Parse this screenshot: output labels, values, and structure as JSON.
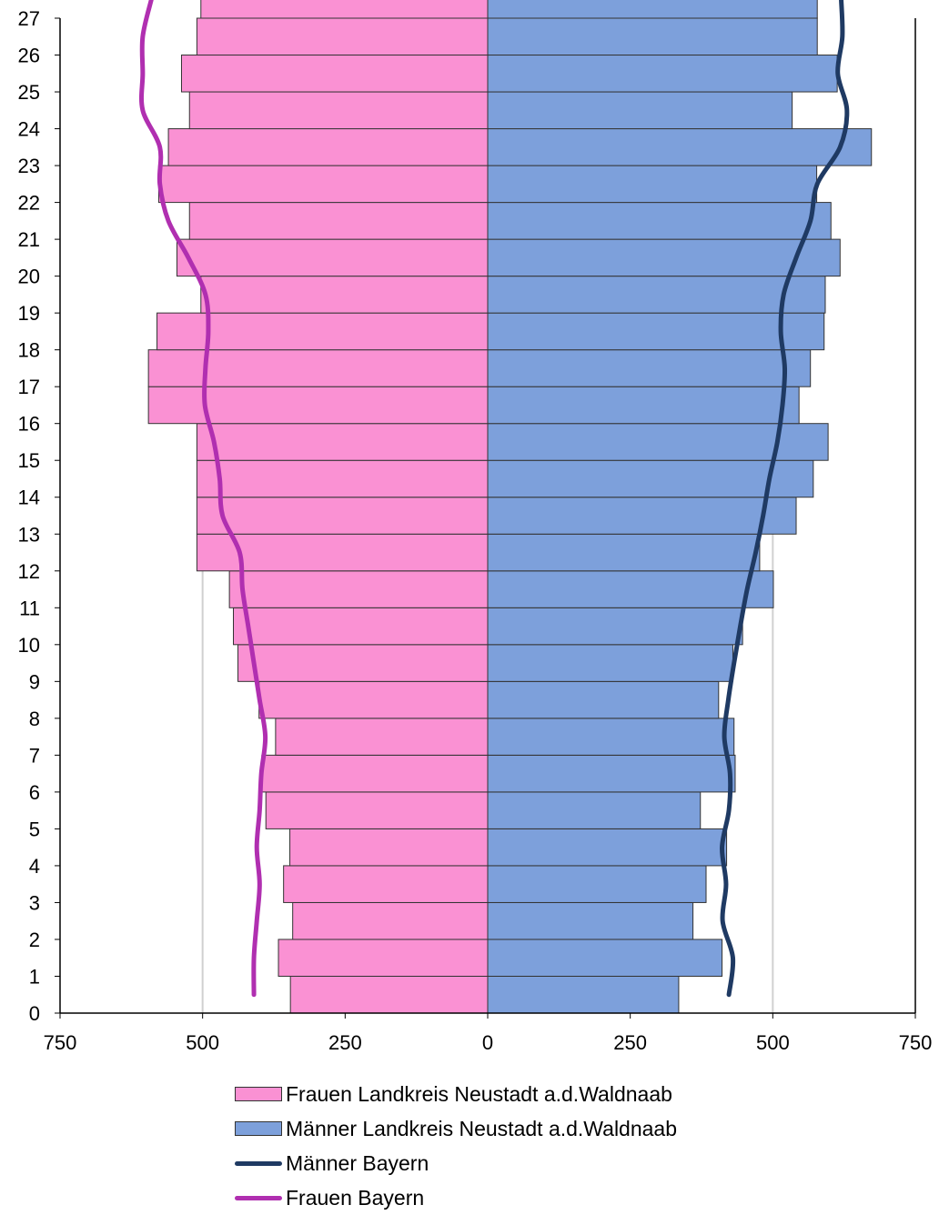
{
  "chart_data": {
    "type": "bar",
    "orientation": "horizontal",
    "subtype": "population-pyramid",
    "y_categories": [
      "0",
      "1",
      "2",
      "3",
      "4",
      "5",
      "6",
      "7",
      "8",
      "9",
      "10",
      "11",
      "12",
      "13",
      "14",
      "15",
      "16",
      "17",
      "18",
      "19",
      "20",
      "21",
      "22",
      "23",
      "24",
      "25",
      "26",
      "27"
    ],
    "y_ticks": [
      0,
      1,
      2,
      3,
      4,
      5,
      6,
      7,
      8,
      9,
      10,
      11,
      12,
      13,
      14,
      15,
      16,
      17,
      18,
      19,
      20,
      21,
      22,
      23,
      24,
      25,
      26,
      27
    ],
    "x_ticks": [
      -750,
      -500,
      -250,
      0,
      250,
      500,
      750
    ],
    "x_tick_labels": [
      "750",
      "500",
      "250",
      "0",
      "250",
      "500",
      "750"
    ],
    "xlim": [
      -750,
      750
    ],
    "ylim": [
      0,
      27
    ],
    "grid": "vertical at ±500",
    "legend_position": "bottom",
    "colors": {
      "frauen_bar": "#fa91d3",
      "maenner_bar": "#7da0db",
      "bar_edge": "#333333",
      "maenner_bayern_line": "#1f3a63",
      "frauen_bayern_line": "#b02fb0",
      "grid": "#d0d0d0"
    },
    "series": [
      {
        "name": "Frauen Landkreis Neustadt a.d.Waldnaab",
        "kind": "bar",
        "side": "left",
        "values": [
          346,
          367,
          342,
          358,
          347,
          389,
          396,
          372,
          401,
          438,
          446,
          453,
          510,
          510,
          510,
          510,
          595,
          595,
          580,
          503,
          545,
          523,
          577,
          560,
          523,
          537,
          510,
          503
        ]
      },
      {
        "name": "Männer Landkreis Neustadt a.d.Waldnaab",
        "kind": "bar",
        "side": "right",
        "values": [
          335,
          411,
          360,
          383,
          419,
          373,
          434,
          432,
          405,
          430,
          447,
          501,
          477,
          541,
          571,
          597,
          546,
          566,
          590,
          592,
          618,
          602,
          577,
          673,
          534,
          613,
          578,
          578
        ]
      },
      {
        "name": "Männer Bayern",
        "kind": "line",
        "side": "right",
        "values": [
          423,
          430,
          412,
          418,
          411,
          423,
          425,
          415,
          422,
          432,
          443,
          455,
          470,
          483,
          494,
          508,
          517,
          521,
          514,
          519,
          541,
          566,
          578,
          618,
          630,
          614,
          622,
          620
        ]
      },
      {
        "name": "Frauen Bayern",
        "kind": "line",
        "side": "left",
        "values": [
          410,
          410,
          405,
          400,
          405,
          400,
          397,
          390,
          400,
          410,
          420,
          430,
          435,
          465,
          470,
          480,
          496,
          495,
          490,
          495,
          525,
          560,
          575,
          575,
          605,
          605,
          605,
          590
        ]
      }
    ]
  }
}
